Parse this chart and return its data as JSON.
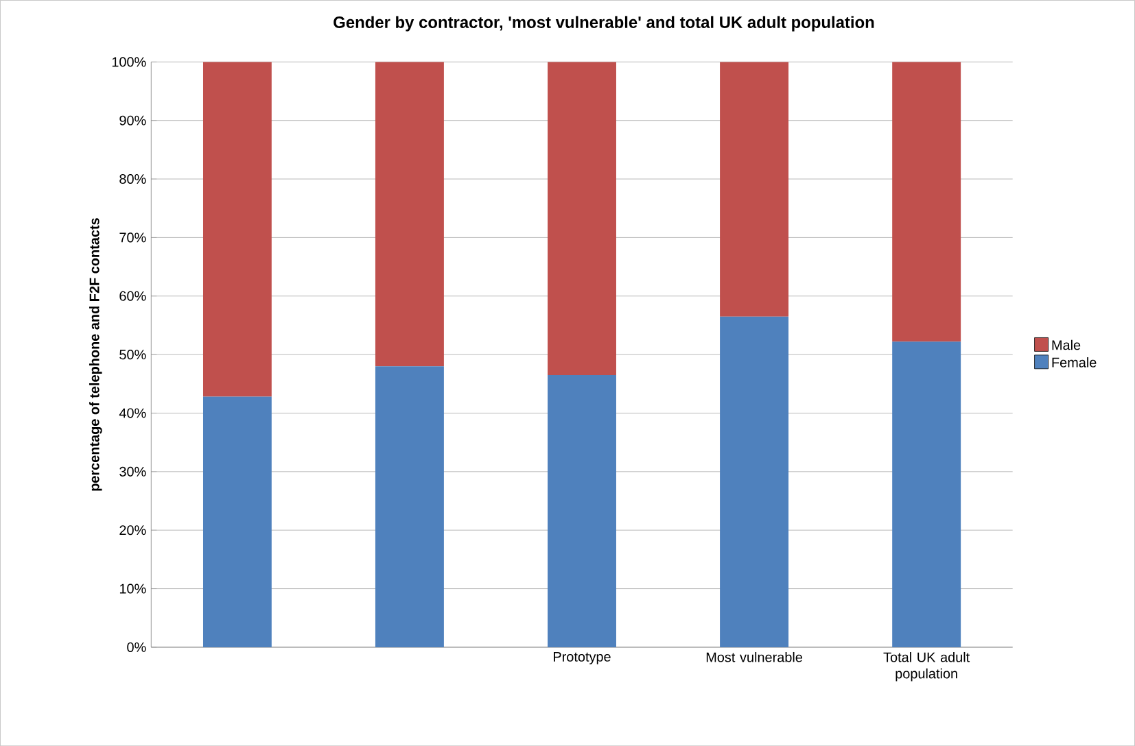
{
  "chart_data": {
    "type": "bar",
    "stacked": true,
    "title": "Gender by contractor, 'most vulnerable' and total UK adult population",
    "ylabel": "percentage of telephone and F2F contacts",
    "categories": [
      null,
      null,
      "Prototype",
      "Most vulnerable",
      "Total UK adult population"
    ],
    "series": [
      {
        "name": "Female",
        "color": "#4f81bd",
        "values": [
          42.8,
          48,
          46.5,
          56.5,
          52.2
        ]
      },
      {
        "name": "Male",
        "color": "#c0504d",
        "values": [
          57.2,
          52,
          53.5,
          43.5,
          47.8
        ]
      }
    ],
    "ylim": [
      0,
      100
    ],
    "yticks": [
      {
        "value": 0,
        "label": "0%"
      },
      {
        "value": 10,
        "label": "10%"
      },
      {
        "value": 20,
        "label": "20%"
      },
      {
        "value": 30,
        "label": "30%"
      },
      {
        "value": 40,
        "label": "40%"
      },
      {
        "value": 50,
        "label": "50%"
      },
      {
        "value": 60,
        "label": "60%"
      },
      {
        "value": 70,
        "label": "70%"
      },
      {
        "value": 80,
        "label": "80%"
      },
      {
        "value": 90,
        "label": "90%"
      },
      {
        "value": 100,
        "label": "100%"
      }
    ],
    "grid": "y",
    "legend": "right"
  }
}
